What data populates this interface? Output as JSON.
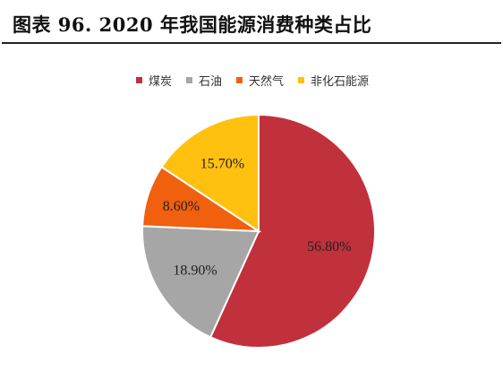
{
  "title": "图表 96. 2020 年我国能源消费种类占比",
  "chart_data": {
    "type": "pie",
    "title": "图表 96. 2020 年我国能源消费种类占比",
    "legend_position": "top",
    "categories": [
      "煤炭",
      "石油",
      "天然气",
      "非化石能源"
    ],
    "values": [
      56.8,
      18.9,
      8.6,
      15.7
    ],
    "labels": [
      "56.80%",
      "18.90%",
      "8.60%",
      "15.70%"
    ],
    "colors": [
      "#C0313B",
      "#A6A6A6",
      "#F0600F",
      "#FFC010"
    ],
    "start_angle_deg": 0,
    "direction": "clockwise"
  }
}
